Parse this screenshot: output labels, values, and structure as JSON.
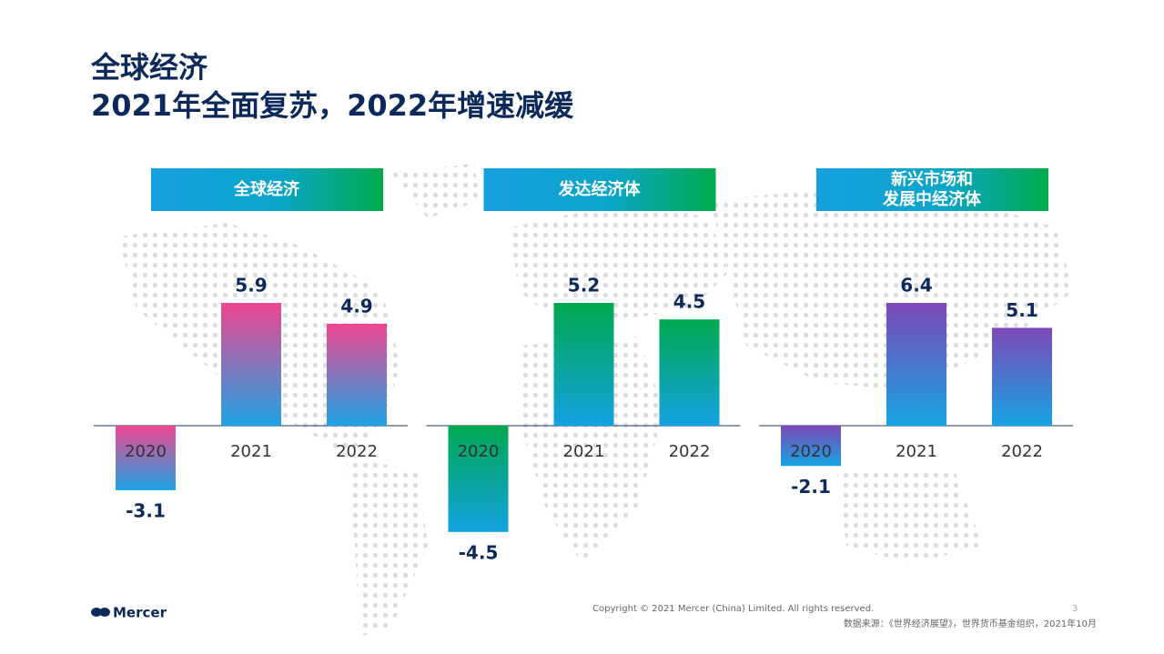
{
  "title": "全球经济",
  "subtitle": "2021年全面复苏，2022年增速减缓",
  "chart_data": [
    {
      "type": "bar",
      "title": [
        "全球经济"
      ],
      "categories": [
        "2020",
        "2021",
        "2022"
      ],
      "values": [
        -3.1,
        5.9,
        4.9
      ],
      "color": [
        "#ee4690",
        "#1ea3e4"
      ]
    },
    {
      "type": "bar",
      "title": [
        "发达经济体"
      ],
      "categories": [
        "2020",
        "2021",
        "2022"
      ],
      "values": [
        -4.5,
        5.2,
        4.5
      ],
      "color": [
        "#00a84f",
        "#12a2e2"
      ]
    },
    {
      "type": "bar",
      "title": [
        "新兴市场和",
        "发展中经济体"
      ],
      "categories": [
        "2020",
        "2021",
        "2022"
      ],
      "values": [
        -2.1,
        6.4,
        5.1
      ],
      "color": [
        "#7d48b6",
        "#16a4e4"
      ]
    }
  ],
  "footer": {
    "logo": "Mercer",
    "copyright": "Copyright © 2021 Mercer (China) Limited. All rights reserved.",
    "page": "3",
    "source": "数据来源：《世界经济展望》，世界货币基金组织，2021年10月"
  }
}
